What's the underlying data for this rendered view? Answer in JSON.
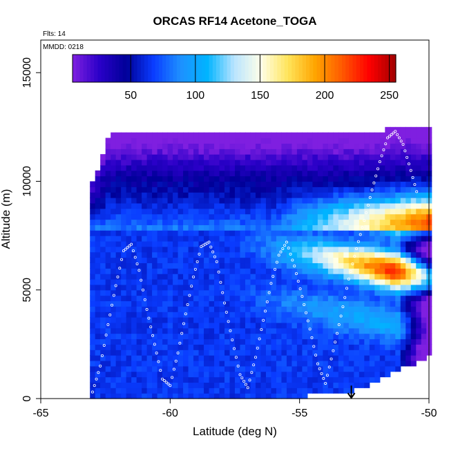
{
  "chart_data": {
    "type": "heatmap",
    "title": "ORCAS RF14 Acetone_TOGA",
    "flights_label": "Flts: 14",
    "mmdd_label": "MMDD: 0218",
    "xlabel": "Latitude (deg N)",
    "ylabel": "Altitude (m)",
    "xlim": [
      -65,
      -50
    ],
    "ylim": [
      0,
      16500
    ],
    "x_ticks": [
      -65,
      -60,
      -55,
      -50
    ],
    "x_tick_labels": [
      "-65",
      "-60",
      "-55",
      "-50"
    ],
    "y_ticks": [
      0,
      5000,
      10000,
      15000
    ],
    "y_tick_labels": [
      "0",
      "5000",
      "10000",
      "15000"
    ],
    "colorbar": {
      "range": [
        5,
        255
      ],
      "ticks": [
        50,
        100,
        150,
        200,
        250
      ],
      "tick_labels": [
        "50",
        "100",
        "150",
        "200",
        "250"
      ],
      "colors": [
        "#7f1fe0",
        "#2a00c8",
        "#000098",
        "#0a3cff",
        "#1e90ff",
        "#00b4ff",
        "#b9e4ff",
        "#ffffe8",
        "#ffe45a",
        "#ffa500",
        "#ff5a00",
        "#ff0000",
        "#a00000"
      ]
    },
    "field": {
      "extent_lat": [
        -63.1,
        -50.0
      ],
      "top_altitude": [
        [
          -63.1,
          9500
        ],
        [
          -62.3,
          12100
        ],
        [
          -52.0,
          12100
        ],
        [
          -51.0,
          12500
        ],
        [
          -50.0,
          12500
        ]
      ],
      "bottom_altitude": [
        [
          -63.1,
          0
        ],
        [
          -57.7,
          0
        ],
        [
          -53.0,
          400
        ],
        [
          -51.0,
          1500
        ],
        [
          -50.0,
          2000
        ]
      ],
      "rich_plume_peak_lat": -51.5,
      "rich_plume_peak_alt": 6500,
      "background_value": 65,
      "upper_value": 20
    },
    "flight_track_lat": [
      -63.0,
      -62.7,
      -62.4,
      -62.1,
      -61.8,
      -61.5,
      -61.2,
      -60.9,
      -60.6,
      -60.3,
      -60.0,
      -59.7,
      -59.4,
      -59.1,
      -58.8,
      -58.5,
      -58.2,
      -57.9,
      -57.6,
      -57.3,
      -57.0,
      -56.7,
      -56.4,
      -56.1,
      -55.8,
      -55.5,
      -55.2,
      -54.9,
      -54.6,
      -54.3,
      -54.0,
      -53.7,
      -53.4,
      -53.1,
      -52.8,
      -52.5,
      -52.2,
      -51.9,
      -51.6,
      -51.3,
      -51.0,
      -50.7,
      -50.4
    ],
    "flight_track_alt": [
      300,
      1500,
      3400,
      5200,
      6800,
      7100,
      5900,
      4100,
      2500,
      900,
      600,
      2100,
      3900,
      5600,
      7000,
      7200,
      6300,
      4400,
      2700,
      1100,
      500,
      1900,
      3600,
      5300,
      6600,
      7200,
      6100,
      4700,
      3200,
      1600,
      700,
      2200,
      3800,
      5500,
      6900,
      8200,
      9600,
      10900,
      12000,
      12300,
      11700,
      10500,
      9200
    ],
    "marker_lat": -53.0,
    "marker_alt": 600
  }
}
